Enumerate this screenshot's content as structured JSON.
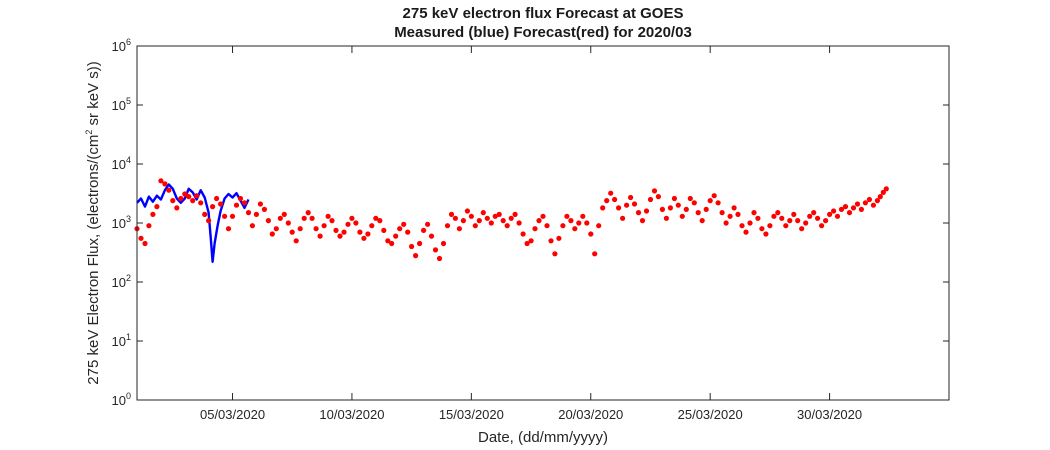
{
  "chart_data": {
    "type": "scatter",
    "title": "275 keV electron flux Forecast at GOES",
    "subtitle": "Measured (blue) Forecast(red) for 2020/03",
    "xlabel": "Date, (dd/mm/yyyy)",
    "ylabel": "275 keV Electron Flux, (electrons/(cm² sr keV s))",
    "ylabel_parts": {
      "pre": "275 keV Electron Flux, (electrons/(cm",
      "sup": "2",
      "post": " sr keV s))"
    },
    "y_scale": "log",
    "ylim": [
      1,
      1000000
    ],
    "y_ticks": [
      {
        "base": "10",
        "exp": "0",
        "value": 1
      },
      {
        "base": "10",
        "exp": "1",
        "value": 10
      },
      {
        "base": "10",
        "exp": "2",
        "value": 100
      },
      {
        "base": "10",
        "exp": "3",
        "value": 1000
      },
      {
        "base": "10",
        "exp": "4",
        "value": 10000
      },
      {
        "base": "10",
        "exp": "5",
        "value": 100000
      },
      {
        "base": "10",
        "exp": "6",
        "value": 1000000
      }
    ],
    "xlim": [
      "2020-03-01",
      "2020-04-04"
    ],
    "x_ticks": [
      {
        "label": "05/03/2020",
        "date": "2020-03-05"
      },
      {
        "label": "10/03/2020",
        "date": "2020-03-10"
      },
      {
        "label": "15/03/2020",
        "date": "2020-03-15"
      },
      {
        "label": "20/03/2020",
        "date": "2020-03-20"
      },
      {
        "label": "25/03/2020",
        "date": "2020-03-25"
      },
      {
        "label": "30/03/2020",
        "date": "2020-03-30"
      }
    ],
    "grid": false,
    "series": [
      {
        "name": "Measured (blue)",
        "style": "line",
        "color": "#0000ff",
        "points": [
          [
            "2020-03-01T00:00",
            2200
          ],
          [
            "2020-03-01T04:00",
            2600
          ],
          [
            "2020-03-01T08:00",
            1900
          ],
          [
            "2020-03-01T12:00",
            2800
          ],
          [
            "2020-03-01T16:00",
            2300
          ],
          [
            "2020-03-01T20:00",
            2900
          ],
          [
            "2020-03-02T00:00",
            2500
          ],
          [
            "2020-03-02T04:00",
            3600
          ],
          [
            "2020-03-02T08:00",
            4500
          ],
          [
            "2020-03-02T12:00",
            3800
          ],
          [
            "2020-03-02T16:00",
            2600
          ],
          [
            "2020-03-02T20:00",
            2200
          ],
          [
            "2020-03-03T00:00",
            2600
          ],
          [
            "2020-03-03T04:00",
            3800
          ],
          [
            "2020-03-03T08:00",
            3300
          ],
          [
            "2020-03-03T12:00",
            2500
          ],
          [
            "2020-03-03T16:00",
            3600
          ],
          [
            "2020-03-03T20:00",
            2700
          ],
          [
            "2020-03-04T00:00",
            1500
          ],
          [
            "2020-03-04T02:00",
            600
          ],
          [
            "2020-03-04T04:00",
            220
          ],
          [
            "2020-03-04T06:00",
            450
          ],
          [
            "2020-03-04T09:00",
            900
          ],
          [
            "2020-03-04T12:00",
            1600
          ],
          [
            "2020-03-04T16:00",
            2600
          ],
          [
            "2020-03-04T20:00",
            3100
          ],
          [
            "2020-03-05T00:00",
            2700
          ],
          [
            "2020-03-05T04:00",
            3200
          ],
          [
            "2020-03-05T08:00",
            2400
          ],
          [
            "2020-03-05T12:00",
            1800
          ],
          [
            "2020-03-05T16:00",
            2500
          ]
        ]
      },
      {
        "name": "Forecast(red)",
        "style": "markers",
        "color": "#ff0000",
        "points": [
          [
            "2020-03-01T00:00",
            800
          ],
          [
            "2020-03-01T04:00",
            550
          ],
          [
            "2020-03-01T08:00",
            450
          ],
          [
            "2020-03-01T12:00",
            900
          ],
          [
            "2020-03-01T16:00",
            1400
          ],
          [
            "2020-03-01T20:00",
            1900
          ],
          [
            "2020-03-02T00:00",
            5200
          ],
          [
            "2020-03-02T04:00",
            4600
          ],
          [
            "2020-03-02T08:00",
            3600
          ],
          [
            "2020-03-02T12:00",
            2400
          ],
          [
            "2020-03-02T16:00",
            1800
          ],
          [
            "2020-03-02T20:00",
            2600
          ],
          [
            "2020-03-03T00:00",
            3100
          ],
          [
            "2020-03-03T04:00",
            2800
          ],
          [
            "2020-03-03T08:00",
            2400
          ],
          [
            "2020-03-03T12:00",
            2900
          ],
          [
            "2020-03-03T16:00",
            2200
          ],
          [
            "2020-03-03T20:00",
            1400
          ],
          [
            "2020-03-04T00:00",
            1100
          ],
          [
            "2020-03-04T04:00",
            1900
          ],
          [
            "2020-03-04T08:00",
            2600
          ],
          [
            "2020-03-04T12:00",
            2100
          ],
          [
            "2020-03-04T16:00",
            1300
          ],
          [
            "2020-03-04T20:00",
            800
          ],
          [
            "2020-03-05T00:00",
            1300
          ],
          [
            "2020-03-05T04:00",
            2000
          ],
          [
            "2020-03-05T08:00",
            2600
          ],
          [
            "2020-03-05T12:00",
            2200
          ],
          [
            "2020-03-05T16:00",
            1500
          ],
          [
            "2020-03-05T20:00",
            900
          ],
          [
            "2020-03-06T00:00",
            1400
          ],
          [
            "2020-03-06T04:00",
            2100
          ],
          [
            "2020-03-06T08:00",
            1700
          ],
          [
            "2020-03-06T12:00",
            1100
          ],
          [
            "2020-03-06T16:00",
            650
          ],
          [
            "2020-03-06T20:00",
            800
          ],
          [
            "2020-03-07T00:00",
            1200
          ],
          [
            "2020-03-07T04:00",
            1400
          ],
          [
            "2020-03-07T08:00",
            1000
          ],
          [
            "2020-03-07T12:00",
            700
          ],
          [
            "2020-03-07T16:00",
            500
          ],
          [
            "2020-03-07T20:00",
            800
          ],
          [
            "2020-03-08T00:00",
            1200
          ],
          [
            "2020-03-08T04:00",
            1500
          ],
          [
            "2020-03-08T08:00",
            1200
          ],
          [
            "2020-03-08T12:00",
            800
          ],
          [
            "2020-03-08T16:00",
            600
          ],
          [
            "2020-03-08T20:00",
            900
          ],
          [
            "2020-03-09T00:00",
            1300
          ],
          [
            "2020-03-09T04:00",
            1100
          ],
          [
            "2020-03-09T08:00",
            750
          ],
          [
            "2020-03-09T12:00",
            600
          ],
          [
            "2020-03-09T16:00",
            700
          ],
          [
            "2020-03-09T20:00",
            950
          ],
          [
            "2020-03-10T00:00",
            1200
          ],
          [
            "2020-03-10T04:00",
            1000
          ],
          [
            "2020-03-10T08:00",
            700
          ],
          [
            "2020-03-10T12:00",
            550
          ],
          [
            "2020-03-10T16:00",
            650
          ],
          [
            "2020-03-10T20:00",
            900
          ],
          [
            "2020-03-11T00:00",
            1200
          ],
          [
            "2020-03-11T04:00",
            1100
          ],
          [
            "2020-03-11T08:00",
            750
          ],
          [
            "2020-03-11T12:00",
            500
          ],
          [
            "2020-03-11T16:00",
            450
          ],
          [
            "2020-03-11T20:00",
            600
          ],
          [
            "2020-03-12T00:00",
            800
          ],
          [
            "2020-03-12T04:00",
            950
          ],
          [
            "2020-03-12T08:00",
            700
          ],
          [
            "2020-03-12T12:00",
            400
          ],
          [
            "2020-03-12T16:00",
            280
          ],
          [
            "2020-03-12T20:00",
            450
          ],
          [
            "2020-03-13T00:00",
            750
          ],
          [
            "2020-03-13T04:00",
            950
          ],
          [
            "2020-03-13T08:00",
            600
          ],
          [
            "2020-03-13T12:00",
            350
          ],
          [
            "2020-03-13T16:00",
            250
          ],
          [
            "2020-03-13T20:00",
            450
          ],
          [
            "2020-03-14T00:00",
            900
          ],
          [
            "2020-03-14T04:00",
            1400
          ],
          [
            "2020-03-14T08:00",
            1200
          ],
          [
            "2020-03-14T12:00",
            800
          ],
          [
            "2020-03-14T16:00",
            1100
          ],
          [
            "2020-03-14T20:00",
            1600
          ],
          [
            "2020-03-15T00:00",
            1300
          ],
          [
            "2020-03-15T04:00",
            900
          ],
          [
            "2020-03-15T08:00",
            1100
          ],
          [
            "2020-03-15T12:00",
            1500
          ],
          [
            "2020-03-15T16:00",
            1200
          ],
          [
            "2020-03-15T20:00",
            1000
          ],
          [
            "2020-03-16T00:00",
            1300
          ],
          [
            "2020-03-16T04:00",
            1400
          ],
          [
            "2020-03-16T08:00",
            1100
          ],
          [
            "2020-03-16T12:00",
            900
          ],
          [
            "2020-03-16T16:00",
            1200
          ],
          [
            "2020-03-16T20:00",
            1400
          ],
          [
            "2020-03-17T00:00",
            1000
          ],
          [
            "2020-03-17T04:00",
            650
          ],
          [
            "2020-03-17T08:00",
            450
          ],
          [
            "2020-03-17T12:00",
            500
          ],
          [
            "2020-03-17T16:00",
            800
          ],
          [
            "2020-03-17T20:00",
            1100
          ],
          [
            "2020-03-18T00:00",
            1300
          ],
          [
            "2020-03-18T04:00",
            900
          ],
          [
            "2020-03-18T08:00",
            500
          ],
          [
            "2020-03-18T12:00",
            300
          ],
          [
            "2020-03-18T16:00",
            550
          ],
          [
            "2020-03-18T20:00",
            900
          ],
          [
            "2020-03-19T00:00",
            1300
          ],
          [
            "2020-03-19T04:00",
            1100
          ],
          [
            "2020-03-19T08:00",
            800
          ],
          [
            "2020-03-19T12:00",
            1000
          ],
          [
            "2020-03-19T16:00",
            1300
          ],
          [
            "2020-03-19T20:00",
            1000
          ],
          [
            "2020-03-20T00:00",
            650
          ],
          [
            "2020-03-20T04:00",
            300
          ],
          [
            "2020-03-20T08:00",
            900
          ],
          [
            "2020-03-20T12:00",
            1800
          ],
          [
            "2020-03-20T16:00",
            2400
          ],
          [
            "2020-03-20T20:00",
            3200
          ],
          [
            "2020-03-21T00:00",
            2500
          ],
          [
            "2020-03-21T04:00",
            1800
          ],
          [
            "2020-03-21T08:00",
            1200
          ],
          [
            "2020-03-21T12:00",
            2000
          ],
          [
            "2020-03-21T16:00",
            2700
          ],
          [
            "2020-03-21T20:00",
            2100
          ],
          [
            "2020-03-22T00:00",
            1500
          ],
          [
            "2020-03-22T04:00",
            1100
          ],
          [
            "2020-03-22T08:00",
            1600
          ],
          [
            "2020-03-22T12:00",
            2500
          ],
          [
            "2020-03-22T16:00",
            3500
          ],
          [
            "2020-03-22T20:00",
            2800
          ],
          [
            "2020-03-23T00:00",
            1700
          ],
          [
            "2020-03-23T04:00",
            1200
          ],
          [
            "2020-03-23T08:00",
            1800
          ],
          [
            "2020-03-23T12:00",
            2600
          ],
          [
            "2020-03-23T16:00",
            2000
          ],
          [
            "2020-03-23T20:00",
            1300
          ],
          [
            "2020-03-24T00:00",
            1700
          ],
          [
            "2020-03-24T04:00",
            2600
          ],
          [
            "2020-03-24T08:00",
            2200
          ],
          [
            "2020-03-24T12:00",
            1500
          ],
          [
            "2020-03-24T16:00",
            1100
          ],
          [
            "2020-03-24T20:00",
            1700
          ],
          [
            "2020-03-25T00:00",
            2400
          ],
          [
            "2020-03-25T04:00",
            2900
          ],
          [
            "2020-03-25T08:00",
            2200
          ],
          [
            "2020-03-25T12:00",
            1500
          ],
          [
            "2020-03-25T16:00",
            1000
          ],
          [
            "2020-03-25T20:00",
            1300
          ],
          [
            "2020-03-26T00:00",
            1800
          ],
          [
            "2020-03-26T04:00",
            1400
          ],
          [
            "2020-03-26T08:00",
            900
          ],
          [
            "2020-03-26T12:00",
            700
          ],
          [
            "2020-03-26T16:00",
            1000
          ],
          [
            "2020-03-26T20:00",
            1500
          ],
          [
            "2020-03-27T00:00",
            1200
          ],
          [
            "2020-03-27T04:00",
            800
          ],
          [
            "2020-03-27T08:00",
            650
          ],
          [
            "2020-03-27T12:00",
            900
          ],
          [
            "2020-03-27T16:00",
            1300
          ],
          [
            "2020-03-27T20:00",
            1500
          ],
          [
            "2020-03-28T00:00",
            1200
          ],
          [
            "2020-03-28T04:00",
            900
          ],
          [
            "2020-03-28T08:00",
            1100
          ],
          [
            "2020-03-28T12:00",
            1400
          ],
          [
            "2020-03-28T16:00",
            1100
          ],
          [
            "2020-03-28T20:00",
            800
          ],
          [
            "2020-03-29T00:00",
            1000
          ],
          [
            "2020-03-29T04:00",
            1300
          ],
          [
            "2020-03-29T08:00",
            1500
          ],
          [
            "2020-03-29T12:00",
            1200
          ],
          [
            "2020-03-29T16:00",
            900
          ],
          [
            "2020-03-29T20:00",
            1100
          ],
          [
            "2020-03-30T00:00",
            1400
          ],
          [
            "2020-03-30T04:00",
            1600
          ],
          [
            "2020-03-30T08:00",
            1300
          ],
          [
            "2020-03-30T12:00",
            1700
          ],
          [
            "2020-03-30T16:00",
            1900
          ],
          [
            "2020-03-30T20:00",
            1500
          ],
          [
            "2020-03-31T00:00",
            1800
          ],
          [
            "2020-03-31T04:00",
            2100
          ],
          [
            "2020-03-31T08:00",
            1700
          ],
          [
            "2020-03-31T12:00",
            2200
          ],
          [
            "2020-03-31T16:00",
            2500
          ],
          [
            "2020-03-31T20:00",
            2000
          ],
          [
            "2020-04-01T00:00",
            2400
          ],
          [
            "2020-04-01T03:00",
            2800
          ],
          [
            "2020-04-01T06:00",
            3300
          ],
          [
            "2020-04-01T09:00",
            3800
          ]
        ]
      }
    ]
  }
}
